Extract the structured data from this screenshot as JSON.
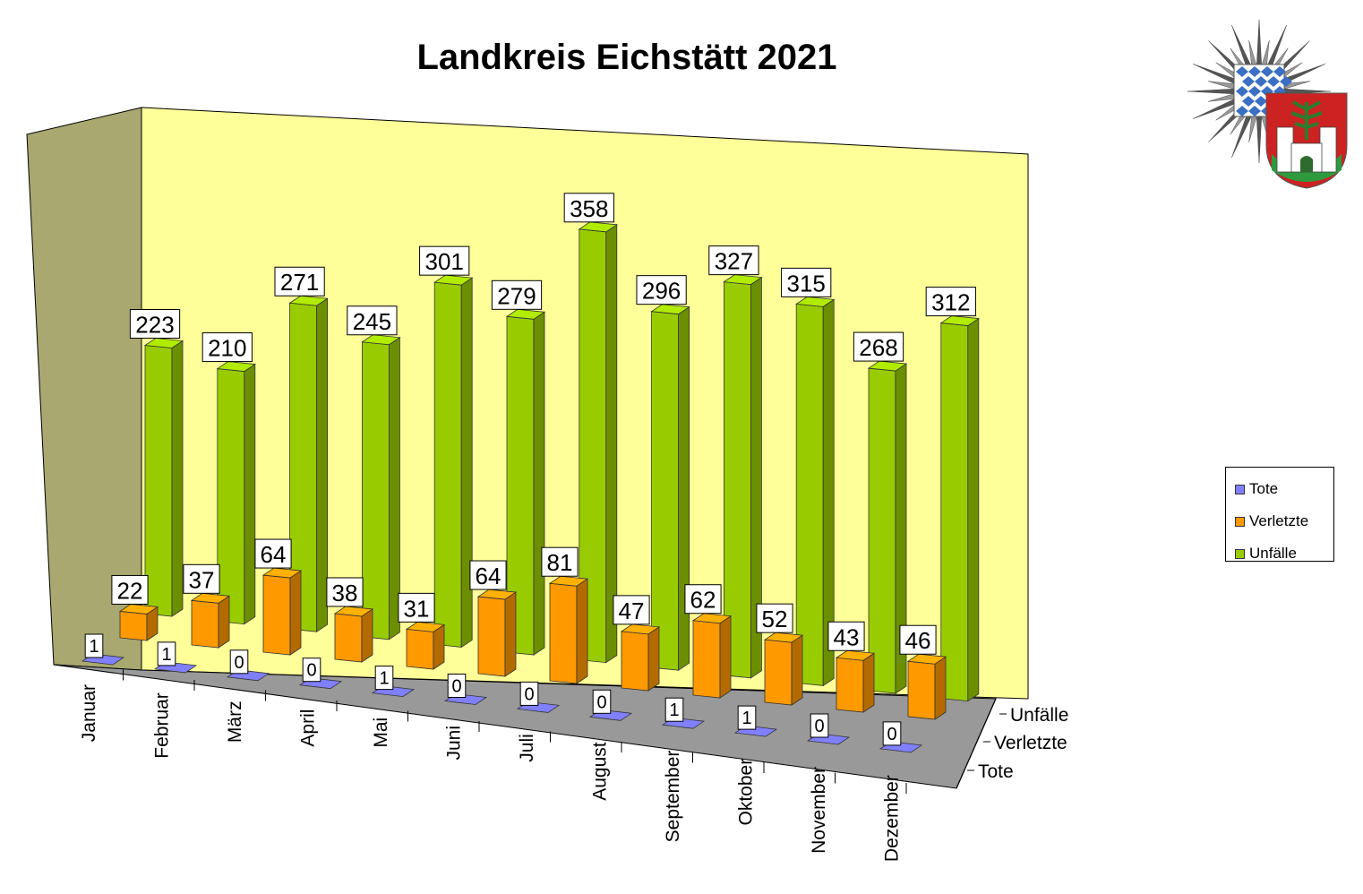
{
  "title": "Landkreis Eichstätt 2021",
  "chart_data": {
    "type": "bar",
    "title": "Landkreis Eichstätt 2021",
    "categories": [
      "Januar",
      "Februar",
      "März",
      "April",
      "Mai",
      "Juni",
      "Juli",
      "August",
      "September",
      "Oktober",
      "November",
      "Dezember"
    ],
    "depth_labels": [
      "Unfälle",
      "Verletzte",
      "Tote"
    ],
    "series": [
      {
        "name": "Tote",
        "color": "#8080ff",
        "values": [
          1,
          1,
          0,
          0,
          1,
          0,
          0,
          0,
          1,
          1,
          0,
          0
        ]
      },
      {
        "name": "Verletzte",
        "color": "#ff9900",
        "values": [
          22,
          37,
          64,
          38,
          31,
          64,
          81,
          47,
          62,
          52,
          43,
          46
        ]
      },
      {
        "name": "Unfälle",
        "color": "#99cc00",
        "values": [
          223,
          210,
          271,
          245,
          301,
          279,
          358,
          296,
          327,
          315,
          268,
          312
        ]
      }
    ],
    "legend_position": "right",
    "data_labels": true,
    "projection": "3d-column"
  },
  "legend": {
    "items": [
      {
        "label": "Tote",
        "color": "#8080ff"
      },
      {
        "label": "Verletzte",
        "color": "#ff9900"
      },
      {
        "label": "Unfälle",
        "color": "#99cc00"
      }
    ]
  }
}
